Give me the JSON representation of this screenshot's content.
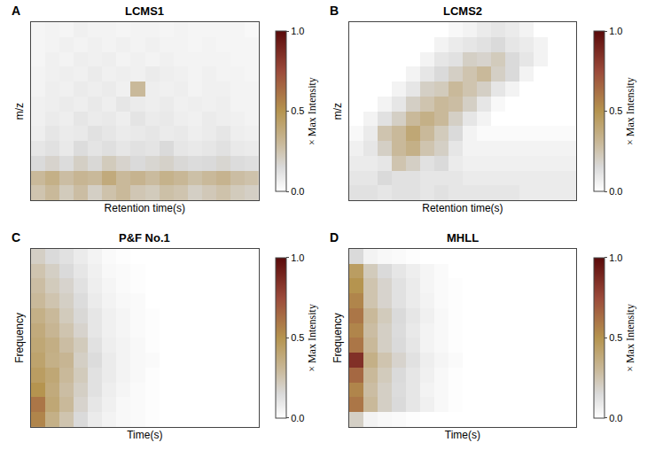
{
  "chart_data": [
    {
      "type": "heatmap",
      "panel_label": "A",
      "title": "LCMS1",
      "x_label": "Retention time(s)",
      "y_label": "m/z",
      "tick_labels": false,
      "colorbar": {
        "range": [
          0,
          1
        ],
        "ticks": [
          {
            "value": 0,
            "label": "0.0"
          },
          {
            "value": 0.5,
            "label": "0.5"
          },
          {
            "value": 1,
            "label": "1.0"
          }
        ],
        "title": "× Max Intensity"
      },
      "z": [
        [
          0.25,
          0.3,
          0.22,
          0.28,
          0.2,
          0.26,
          0.3,
          0.24,
          0.22,
          0.27,
          0.25,
          0.2,
          0.23,
          0.26,
          0.22,
          0.2
        ],
        [
          0.3,
          0.35,
          0.28,
          0.32,
          0.3,
          0.38,
          0.3,
          0.33,
          0.29,
          0.34,
          0.31,
          0.27,
          0.3,
          0.33,
          0.28,
          0.26
        ],
        [
          0.15,
          0.18,
          0.14,
          0.2,
          0.16,
          0.22,
          0.18,
          0.15,
          0.17,
          0.19,
          0.16,
          0.14,
          0.15,
          0.17,
          0.14,
          0.13
        ],
        [
          0.1,
          0.12,
          0.09,
          0.14,
          0.11,
          0.13,
          0.1,
          0.12,
          0.11,
          0.15,
          0.1,
          0.09,
          0.1,
          0.12,
          0.09,
          0.08
        ],
        [
          0.07,
          0.1,
          0.08,
          0.09,
          0.12,
          0.1,
          0.08,
          0.09,
          0.1,
          0.08,
          0.09,
          0.07,
          0.08,
          0.1,
          0.07,
          0.06
        ],
        [
          0.06,
          0.08,
          0.07,
          0.1,
          0.08,
          0.09,
          0.07,
          0.11,
          0.08,
          0.09,
          0.07,
          0.06,
          0.08,
          0.07,
          0.06,
          0.05
        ],
        [
          0.06,
          0.07,
          0.08,
          0.07,
          0.09,
          0.07,
          0.1,
          0.08,
          0.07,
          0.08,
          0.06,
          0.07,
          0.06,
          0.07,
          0.05,
          0.05
        ],
        [
          0.05,
          0.07,
          0.06,
          0.08,
          0.07,
          0.08,
          0.06,
          0.3,
          0.07,
          0.06,
          0.07,
          0.05,
          0.06,
          0.06,
          0.05,
          0.05
        ],
        [
          0.05,
          0.06,
          0.07,
          0.06,
          0.08,
          0.06,
          0.07,
          0.06,
          0.08,
          0.07,
          0.06,
          0.05,
          0.06,
          0.05,
          0.05,
          0.04
        ],
        [
          0.04,
          0.06,
          0.05,
          0.07,
          0.06,
          0.07,
          0.05,
          0.06,
          0.05,
          0.06,
          0.05,
          0.05,
          0.05,
          0.05,
          0.04,
          0.04
        ],
        [
          0.04,
          0.05,
          0.06,
          0.05,
          0.06,
          0.05,
          0.06,
          0.05,
          0.06,
          0.05,
          0.05,
          0.04,
          0.05,
          0.04,
          0.04,
          0.04
        ],
        [
          0.04,
          0.05,
          0.04,
          0.06,
          0.05,
          0.05,
          0.04,
          0.05,
          0.05,
          0.04,
          0.05,
          0.04,
          0.04,
          0.04,
          0.04,
          0.03
        ]
      ]
    },
    {
      "type": "heatmap",
      "panel_label": "B",
      "title": "LCMS2",
      "x_label": "Retention time(s)",
      "y_label": "m/z",
      "tick_labels": false,
      "colorbar": {
        "range": [
          0,
          1
        ],
        "ticks": [
          {
            "value": 0,
            "label": "0.0"
          },
          {
            "value": 0.5,
            "label": "0.5"
          },
          {
            "value": 1,
            "label": "1.0"
          }
        ],
        "title": "× Max Intensity"
      },
      "z": [
        [
          0.12,
          0.12,
          0.1,
          0.12,
          0.12,
          0.1,
          0.12,
          0.1,
          0.1,
          0.1,
          0.1,
          0.1,
          0.08,
          0.08,
          0.08,
          0.08
        ],
        [
          0.1,
          0.1,
          0.15,
          0.12,
          0.12,
          0.1,
          0.1,
          0.1,
          0.08,
          0.08,
          0.08,
          0.08,
          0.08,
          0.08,
          0.08,
          0.08
        ],
        [
          0.08,
          0.08,
          0.1,
          0.25,
          0.2,
          0.12,
          0.15,
          0.08,
          0.06,
          0.06,
          0.06,
          0.06,
          0.06,
          0.06,
          0.06,
          0.06
        ],
        [
          0.06,
          0.1,
          0.2,
          0.3,
          0.35,
          0.25,
          0.2,
          0.1,
          0.05,
          0.05,
          0.05,
          0.05,
          0.05,
          0.05,
          0.05,
          0.05
        ],
        [
          0.03,
          0.08,
          0.25,
          0.3,
          0.4,
          0.3,
          0.22,
          0.15,
          0.05,
          0.02,
          0.02,
          0.02,
          0.02,
          0.02,
          0.02,
          0.02
        ],
        [
          0,
          0.05,
          0.12,
          0.2,
          0.3,
          0.35,
          0.3,
          0.2,
          0.1,
          0.05,
          0,
          0,
          0,
          0,
          0,
          0
        ],
        [
          0,
          0,
          0.05,
          0.1,
          0.2,
          0.25,
          0.3,
          0.28,
          0.2,
          0.1,
          0.03,
          0,
          0,
          0,
          0,
          0
        ],
        [
          0,
          0,
          0,
          0.05,
          0.1,
          0.2,
          0.22,
          0.3,
          0.25,
          0.2,
          0.1,
          0.05,
          0,
          0,
          0,
          0
        ],
        [
          0,
          0,
          0,
          0,
          0.05,
          0.1,
          0.15,
          0.2,
          0.25,
          0.3,
          0.2,
          0.15,
          0.05,
          0,
          0,
          0
        ],
        [
          0,
          0,
          0,
          0,
          0,
          0.05,
          0.1,
          0.12,
          0.2,
          0.18,
          0.22,
          0.15,
          0.1,
          0.05,
          0,
          0
        ],
        [
          0,
          0,
          0,
          0,
          0,
          0,
          0.05,
          0.08,
          0.1,
          0.12,
          0.15,
          0.1,
          0.08,
          0.05,
          0,
          0
        ],
        [
          0,
          0,
          0,
          0,
          0,
          0,
          0,
          0.03,
          0.05,
          0.08,
          0.1,
          0.08,
          0.05,
          0,
          0,
          0
        ]
      ]
    },
    {
      "type": "heatmap",
      "panel_label": "C",
      "title": "P&F No.1",
      "x_label": "Time(s)",
      "y_label": "Frequency",
      "tick_labels": false,
      "colorbar": {
        "range": [
          0,
          1
        ],
        "ticks": [
          {
            "value": 0,
            "label": "0.0"
          },
          {
            "value": 0.5,
            "label": "0.5"
          },
          {
            "value": 1,
            "label": "1.0"
          }
        ],
        "title": "× Max Intensity"
      },
      "z": [
        [
          0.55,
          0.35,
          0.25,
          0.15,
          0.08,
          0.05,
          0.03,
          0.02,
          0.01,
          0,
          0,
          0,
          0,
          0,
          0,
          0
        ],
        [
          0.6,
          0.4,
          0.3,
          0.18,
          0.1,
          0.06,
          0.03,
          0.02,
          0.01,
          0,
          0,
          0,
          0,
          0,
          0,
          0
        ],
        [
          0.5,
          0.38,
          0.28,
          0.2,
          0.12,
          0.07,
          0.04,
          0.02,
          0.01,
          0,
          0,
          0,
          0,
          0,
          0,
          0
        ],
        [
          0.45,
          0.4,
          0.3,
          0.22,
          0.12,
          0.08,
          0.05,
          0.03,
          0.01,
          0,
          0,
          0,
          0,
          0,
          0,
          0
        ],
        [
          0.42,
          0.35,
          0.32,
          0.2,
          0.14,
          0.08,
          0.05,
          0.03,
          0.02,
          0,
          0,
          0,
          0,
          0,
          0,
          0
        ],
        [
          0.4,
          0.36,
          0.28,
          0.22,
          0.12,
          0.07,
          0.05,
          0.03,
          0.01,
          0,
          0,
          0,
          0,
          0,
          0,
          0
        ],
        [
          0.38,
          0.32,
          0.25,
          0.18,
          0.1,
          0.06,
          0.04,
          0.02,
          0.01,
          0,
          0,
          0,
          0,
          0,
          0,
          0
        ],
        [
          0.35,
          0.3,
          0.22,
          0.16,
          0.1,
          0.06,
          0.04,
          0.02,
          0.01,
          0,
          0,
          0,
          0,
          0,
          0,
          0
        ],
        [
          0.3,
          0.25,
          0.2,
          0.14,
          0.08,
          0.05,
          0.03,
          0.02,
          0,
          0,
          0,
          0,
          0,
          0,
          0,
          0
        ],
        [
          0.28,
          0.22,
          0.18,
          0.12,
          0.07,
          0.04,
          0.02,
          0.01,
          0,
          0,
          0,
          0,
          0,
          0,
          0,
          0
        ],
        [
          0.25,
          0.2,
          0.15,
          0.1,
          0.06,
          0.03,
          0.02,
          0.01,
          0,
          0,
          0,
          0,
          0,
          0,
          0,
          0
        ],
        [
          0.2,
          0.15,
          0.12,
          0.08,
          0.05,
          0.02,
          0.01,
          0,
          0,
          0,
          0,
          0,
          0,
          0,
          0,
          0
        ]
      ]
    },
    {
      "type": "heatmap",
      "panel_label": "D",
      "title": "MHLL",
      "x_label": "Time(s)",
      "y_label": "Frequency",
      "tick_labels": false,
      "colorbar": {
        "range": [
          0,
          1
        ],
        "ticks": [
          {
            "value": 0,
            "label": "0.0"
          },
          {
            "value": 0.5,
            "label": "0.5"
          },
          {
            "value": 1,
            "label": "1.0"
          }
        ],
        "title": "× Max Intensity"
      },
      "z": [
        [
          0.2,
          0.05,
          0.03,
          0.02,
          0.01,
          0,
          0,
          0,
          0,
          0,
          0,
          0,
          0,
          0,
          0,
          0
        ],
        [
          0.6,
          0.3,
          0.2,
          0.15,
          0.1,
          0.06,
          0.03,
          0.01,
          0,
          0,
          0,
          0,
          0,
          0,
          0,
          0
        ],
        [
          0.55,
          0.28,
          0.2,
          0.14,
          0.1,
          0.05,
          0.03,
          0.01,
          0,
          0,
          0,
          0,
          0,
          0,
          0,
          0
        ],
        [
          0.65,
          0.3,
          0.22,
          0.15,
          0.1,
          0.06,
          0.03,
          0.01,
          0,
          0,
          0,
          0,
          0,
          0,
          0,
          0
        ],
        [
          0.85,
          0.35,
          0.25,
          0.18,
          0.12,
          0.07,
          0.04,
          0.02,
          0,
          0,
          0,
          0,
          0,
          0,
          0,
          0
        ],
        [
          0.6,
          0.3,
          0.2,
          0.15,
          0.1,
          0.05,
          0.03,
          0.01,
          0,
          0,
          0,
          0,
          0,
          0,
          0,
          0
        ],
        [
          0.55,
          0.28,
          0.2,
          0.14,
          0.09,
          0.05,
          0.03,
          0.01,
          0,
          0,
          0,
          0,
          0,
          0,
          0,
          0
        ],
        [
          0.6,
          0.3,
          0.22,
          0.15,
          0.1,
          0.06,
          0.03,
          0.01,
          0,
          0,
          0,
          0,
          0,
          0,
          0,
          0
        ],
        [
          0.55,
          0.25,
          0.18,
          0.12,
          0.08,
          0.05,
          0.02,
          0.01,
          0,
          0,
          0,
          0,
          0,
          0,
          0,
          0
        ],
        [
          0.5,
          0.25,
          0.18,
          0.12,
          0.08,
          0.04,
          0.02,
          0.01,
          0,
          0,
          0,
          0,
          0,
          0,
          0,
          0
        ],
        [
          0.45,
          0.22,
          0.15,
          0.1,
          0.07,
          0.04,
          0.02,
          0,
          0,
          0,
          0,
          0,
          0,
          0,
          0,
          0
        ],
        [
          0.15,
          0.05,
          0.03,
          0.02,
          0.01,
          0,
          0,
          0,
          0,
          0,
          0,
          0,
          0,
          0,
          0,
          0
        ]
      ]
    }
  ]
}
